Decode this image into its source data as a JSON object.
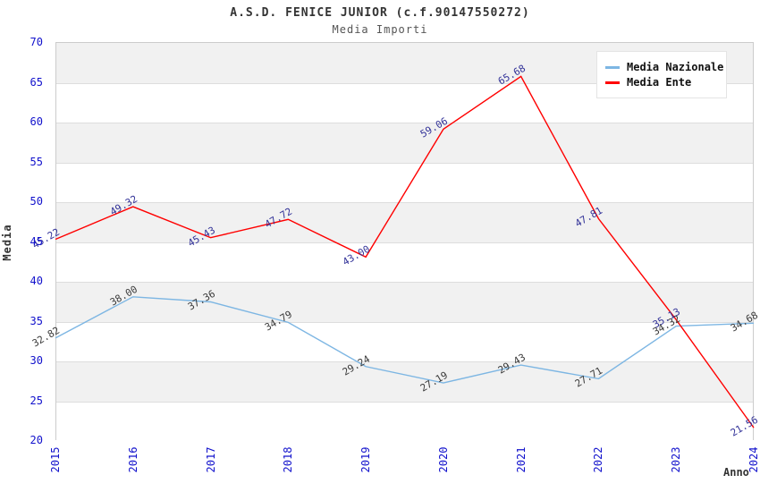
{
  "header": {
    "title": "A.S.D. FENICE JUNIOR (c.f.90147550272)",
    "subtitle": "Media Importi"
  },
  "chart_data": {
    "type": "line",
    "title": "A.S.D. FENICE JUNIOR (c.f.90147550272)",
    "subtitle": "Media Importi",
    "xlabel": "Anno",
    "ylabel": "Media",
    "categories": [
      "2015",
      "2016",
      "2017",
      "2018",
      "2019",
      "2020",
      "2021",
      "2022",
      "2023",
      "2024"
    ],
    "ylim": [
      20,
      70
    ],
    "y_tick_step": 5,
    "y_ticks": [
      20,
      25,
      30,
      35,
      40,
      45,
      50,
      55,
      60,
      65,
      70
    ],
    "grid": "horizontal",
    "legend_position": "top-right",
    "colors": {
      "tick_label": "#1111cc",
      "band_gray": "#f1f1f1",
      "band_white": "#ffffff",
      "gridline": "#dddddd",
      "plot_border": "#cccccc"
    },
    "series": [
      {
        "name": "Media Nazionale",
        "color": "#7db6e3",
        "label_color": "#3b3b3b",
        "values": [
          32.82,
          38.0,
          37.36,
          34.79,
          29.24,
          27.19,
          29.43,
          27.71,
          34.32,
          34.68
        ]
      },
      {
        "name": "Media Ente",
        "color": "#ff0000",
        "label_color": "#333399",
        "values": [
          45.22,
          49.32,
          45.43,
          47.72,
          43.0,
          59.06,
          65.68,
          47.81,
          35.13,
          21.56
        ]
      }
    ]
  }
}
